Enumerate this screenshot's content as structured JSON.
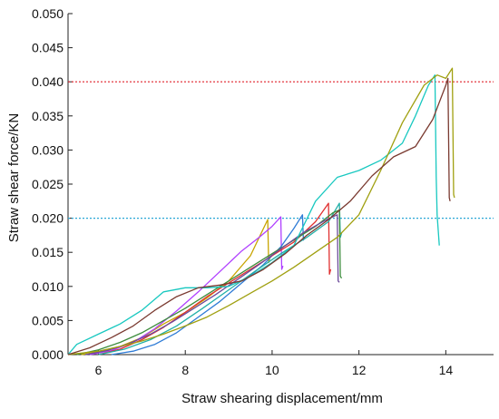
{
  "chart_data": {
    "type": "line",
    "title": "",
    "xlabel": "Straw shearing displacement/mm",
    "ylabel": "Straw shear force/KN",
    "xlim": [
      5.3,
      15.1
    ],
    "ylim": [
      0.0,
      0.05
    ],
    "x_ticks": [
      6,
      8,
      10,
      12,
      14
    ],
    "x_tick_labels": [
      "6",
      "8",
      "10",
      "12",
      "14"
    ],
    "y_ticks": [
      0.0,
      0.005,
      0.01,
      0.015,
      0.02,
      0.025,
      0.03,
      0.035,
      0.04,
      0.045,
      0.05
    ],
    "y_tick_labels": [
      "0.000",
      "0.005",
      "0.010",
      "0.015",
      "0.020",
      "0.025",
      "0.030",
      "0.035",
      "0.040",
      "0.045",
      "0.050"
    ],
    "grid": false,
    "legend": "none",
    "reference_lines": [
      {
        "y": 0.04,
        "color": "#e0202a",
        "style": "dotted"
      },
      {
        "y": 0.02,
        "color": "#2aa7d6",
        "style": "dotted"
      }
    ],
    "series": [
      {
        "color": "#c8a400",
        "points": [
          [
            5.6,
            0.0
          ],
          [
            6.0,
            0.0004
          ],
          [
            6.5,
            0.0012
          ],
          [
            7.0,
            0.0025
          ],
          [
            7.5,
            0.0045
          ],
          [
            8.0,
            0.0062
          ],
          [
            8.5,
            0.0083
          ],
          [
            9.0,
            0.0108
          ],
          [
            9.5,
            0.0145
          ],
          [
            9.8,
            0.0185
          ],
          [
            9.9,
            0.0198
          ],
          [
            9.92,
            0.0135
          ],
          [
            9.95,
            0.0142
          ]
        ]
      },
      {
        "color": "#b040ff",
        "points": [
          [
            5.8,
            0.0
          ],
          [
            6.3,
            0.0006
          ],
          [
            6.8,
            0.0018
          ],
          [
            7.3,
            0.0038
          ],
          [
            7.8,
            0.0064
          ],
          [
            8.3,
            0.0092
          ],
          [
            8.8,
            0.0122
          ],
          [
            9.3,
            0.0152
          ],
          [
            9.7,
            0.0172
          ],
          [
            10.0,
            0.0188
          ],
          [
            10.2,
            0.0202
          ],
          [
            10.22,
            0.0125
          ],
          [
            10.25,
            0.013
          ]
        ]
      },
      {
        "color": "#2e7bd6",
        "points": [
          [
            6.3,
            0.0
          ],
          [
            6.8,
            0.0005
          ],
          [
            7.3,
            0.0015
          ],
          [
            7.8,
            0.0032
          ],
          [
            8.3,
            0.0055
          ],
          [
            8.8,
            0.0078
          ],
          [
            9.3,
            0.0105
          ],
          [
            9.8,
            0.0132
          ],
          [
            10.2,
            0.0158
          ],
          [
            10.5,
            0.0185
          ],
          [
            10.7,
            0.0205
          ],
          [
            10.72,
            0.0168
          ],
          [
            10.75,
            0.0172
          ]
        ]
      },
      {
        "color": "#e03030",
        "points": [
          [
            6.0,
            0.0
          ],
          [
            6.5,
            0.0008
          ],
          [
            7.0,
            0.0022
          ],
          [
            7.5,
            0.004
          ],
          [
            8.0,
            0.0062
          ],
          [
            8.5,
            0.0085
          ],
          [
            9.0,
            0.0105
          ],
          [
            9.5,
            0.0125
          ],
          [
            10.0,
            0.0145
          ],
          [
            10.5,
            0.0165
          ],
          [
            11.0,
            0.0195
          ],
          [
            11.3,
            0.0222
          ],
          [
            11.32,
            0.0118
          ],
          [
            11.35,
            0.0125
          ]
        ]
      },
      {
        "color": "#22b0a8",
        "points": [
          [
            6.0,
            0.0
          ],
          [
            6.6,
            0.0008
          ],
          [
            7.2,
            0.0022
          ],
          [
            7.8,
            0.0042
          ],
          [
            8.4,
            0.0068
          ],
          [
            9.0,
            0.0095
          ],
          [
            9.6,
            0.0122
          ],
          [
            10.2,
            0.0148
          ],
          [
            10.8,
            0.0172
          ],
          [
            11.3,
            0.0195
          ],
          [
            11.55,
            0.0222
          ],
          [
            11.57,
            0.0172
          ],
          [
            11.6,
            0.0178
          ]
        ]
      },
      {
        "color": "#3c8c3c",
        "points": [
          [
            5.5,
            0.0
          ],
          [
            6.0,
            0.0007
          ],
          [
            6.5,
            0.0018
          ],
          [
            7.0,
            0.0032
          ],
          [
            7.5,
            0.005
          ],
          [
            8.0,
            0.0068
          ],
          [
            8.5,
            0.0088
          ],
          [
            9.0,
            0.0108
          ],
          [
            9.5,
            0.0128
          ],
          [
            10.0,
            0.0148
          ],
          [
            10.5,
            0.0168
          ],
          [
            11.0,
            0.0188
          ],
          [
            11.4,
            0.0208
          ],
          [
            11.55,
            0.0212
          ],
          [
            11.57,
            0.0115
          ],
          [
            11.6,
            0.0112
          ]
        ]
      },
      {
        "color": "#6b4a9a",
        "points": [
          [
            5.7,
            0.0
          ],
          [
            6.2,
            0.0006
          ],
          [
            6.7,
            0.0016
          ],
          [
            7.2,
            0.003
          ],
          [
            7.7,
            0.0048
          ],
          [
            8.2,
            0.0068
          ],
          [
            8.7,
            0.0088
          ],
          [
            9.2,
            0.011
          ],
          [
            9.7,
            0.0132
          ],
          [
            10.2,
            0.0155
          ],
          [
            10.7,
            0.0178
          ],
          [
            11.2,
            0.0196
          ],
          [
            11.5,
            0.0205
          ],
          [
            11.52,
            0.0108
          ],
          [
            11.55,
            0.0106
          ]
        ]
      },
      {
        "color": "#18c8c0",
        "points": [
          [
            5.3,
            0.0
          ],
          [
            5.5,
            0.0015
          ],
          [
            6.0,
            0.003
          ],
          [
            6.5,
            0.0045
          ],
          [
            7.0,
            0.0065
          ],
          [
            7.5,
            0.0092
          ],
          [
            8.0,
            0.0098
          ],
          [
            8.5,
            0.0098
          ],
          [
            9.0,
            0.01
          ],
          [
            9.5,
            0.0115
          ],
          [
            10.0,
            0.0135
          ],
          [
            10.5,
            0.016
          ],
          [
            11.0,
            0.0225
          ],
          [
            11.5,
            0.026
          ],
          [
            12.0,
            0.027
          ],
          [
            12.5,
            0.0285
          ],
          [
            13.0,
            0.031
          ],
          [
            13.3,
            0.035
          ],
          [
            13.6,
            0.0395
          ],
          [
            13.75,
            0.041
          ],
          [
            13.78,
            0.026
          ],
          [
            13.8,
            0.0205
          ],
          [
            13.85,
            0.016
          ]
        ]
      },
      {
        "color": "#a0a010",
        "points": [
          [
            5.3,
            0.0
          ],
          [
            6.0,
            0.0005
          ],
          [
            6.5,
            0.0012
          ],
          [
            7.0,
            0.002
          ],
          [
            7.5,
            0.003
          ],
          [
            8.0,
            0.0042
          ],
          [
            8.5,
            0.0055
          ],
          [
            9.0,
            0.0072
          ],
          [
            9.5,
            0.009
          ],
          [
            10.0,
            0.0108
          ],
          [
            10.5,
            0.0128
          ],
          [
            11.0,
            0.015
          ],
          [
            11.5,
            0.0172
          ],
          [
            12.0,
            0.0205
          ],
          [
            12.5,
            0.027
          ],
          [
            13.0,
            0.034
          ],
          [
            13.5,
            0.0395
          ],
          [
            13.8,
            0.041
          ],
          [
            14.0,
            0.0405
          ],
          [
            14.15,
            0.042
          ],
          [
            14.18,
            0.0235
          ],
          [
            14.2,
            0.023
          ]
        ]
      },
      {
        "color": "#7a3a30",
        "points": [
          [
            5.3,
            0.0
          ],
          [
            5.8,
            0.001
          ],
          [
            6.3,
            0.0025
          ],
          [
            6.8,
            0.0042
          ],
          [
            7.3,
            0.0065
          ],
          [
            7.8,
            0.0085
          ],
          [
            8.3,
            0.0098
          ],
          [
            8.8,
            0.0102
          ],
          [
            9.3,
            0.0108
          ],
          [
            9.8,
            0.0125
          ],
          [
            10.3,
            0.0148
          ],
          [
            10.8,
            0.0175
          ],
          [
            11.3,
            0.0198
          ],
          [
            11.8,
            0.0225
          ],
          [
            12.3,
            0.0262
          ],
          [
            12.8,
            0.029
          ],
          [
            13.3,
            0.0305
          ],
          [
            13.7,
            0.0345
          ],
          [
            14.0,
            0.0395
          ],
          [
            14.05,
            0.0405
          ],
          [
            14.08,
            0.023
          ],
          [
            14.1,
            0.0225
          ]
        ]
      }
    ]
  }
}
